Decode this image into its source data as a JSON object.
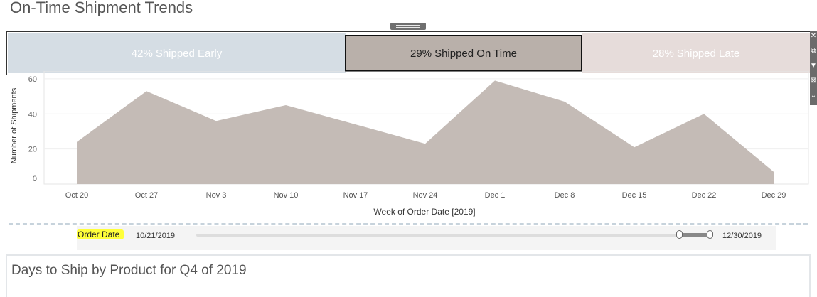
{
  "dashboard": {
    "title": "On-Time Shipment Trends",
    "next_title": "Days to Ship by Product for Q4 of 2019"
  },
  "tiles": [
    {
      "pct": "42%",
      "label": "Shipped Early",
      "color": "#d5dde4",
      "selected": false
    },
    {
      "pct": "29%",
      "label": "Shipped On Time",
      "color": "#b9b0aa",
      "selected": true
    },
    {
      "pct": "28%",
      "label": "Shipped Late",
      "color": "#e6dcda",
      "selected": false
    }
  ],
  "toolbar": {
    "icons": [
      "close-icon",
      "popout-icon",
      "filter-icon",
      "fit-icon",
      "more-icon"
    ]
  },
  "chart_data": {
    "type": "area",
    "x": [
      "Oct 20",
      "Oct 27",
      "Nov 3",
      "Nov 10",
      "Nov 17",
      "Nov 24",
      "Dec 1",
      "Dec 8",
      "Dec 15",
      "Dec 22",
      "Dec 29"
    ],
    "series": [
      {
        "values": [
          24,
          53,
          36,
          45,
          34,
          23,
          59,
          47,
          21,
          40,
          7
        ],
        "color": "#c4bbb6"
      }
    ],
    "xlabel": "Week of Order Date [2019]",
    "ylabel": "Number of Shipments",
    "yticks": [
      0,
      20,
      40,
      60
    ],
    "ylim": [
      0,
      62
    ],
    "grid": true
  },
  "filter": {
    "label": "Order Date",
    "start": "10/21/2019",
    "end": "12/30/2019",
    "range_start_fraction": 0.94,
    "range_end_fraction": 1.0
  }
}
